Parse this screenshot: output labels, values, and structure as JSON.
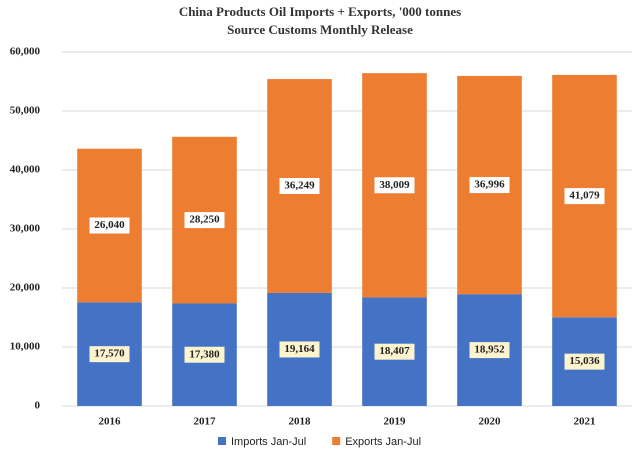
{
  "chart_data": {
    "type": "stacked-bar",
    "title": "China Products Oil Imports + Exports, '000 tonnes",
    "subtitle": "Source Customs Monthly Release",
    "categories": [
      "2016",
      "2017",
      "2018",
      "2019",
      "2020",
      "2021"
    ],
    "series": [
      {
        "name": "Imports Jan-Jul",
        "color": "#4472c4",
        "label_background": "#fcf3cf",
        "values": [
          17570,
          17380,
          19164,
          18407,
          18952,
          15036
        ],
        "value_labels": [
          "17,570",
          "17,380",
          "19,164",
          "18,407",
          "18,952",
          "15,036"
        ]
      },
      {
        "name": "Exports Jan-Jul",
        "color": "#ed7d31",
        "label_background": "#ffffff",
        "values": [
          26040,
          28250,
          36249,
          38009,
          36996,
          41079
        ],
        "value_labels": [
          "26,040",
          "28,250",
          "36,249",
          "38,009",
          "36,996",
          "41,079"
        ]
      }
    ],
    "ylim": [
      0,
      60000
    ],
    "yticks": [
      0,
      {
        "value": 10000,
        "label": "10,000"
      },
      {
        "value": 20000,
        "label": "20,000"
      },
      {
        "value": 30000,
        "label": "30,000"
      },
      {
        "value": 40000,
        "label": "40,000"
      },
      {
        "value": 50000,
        "label": "50,000"
      },
      {
        "value": 60000,
        "label": "60,000"
      }
    ],
    "grid": true
  }
}
